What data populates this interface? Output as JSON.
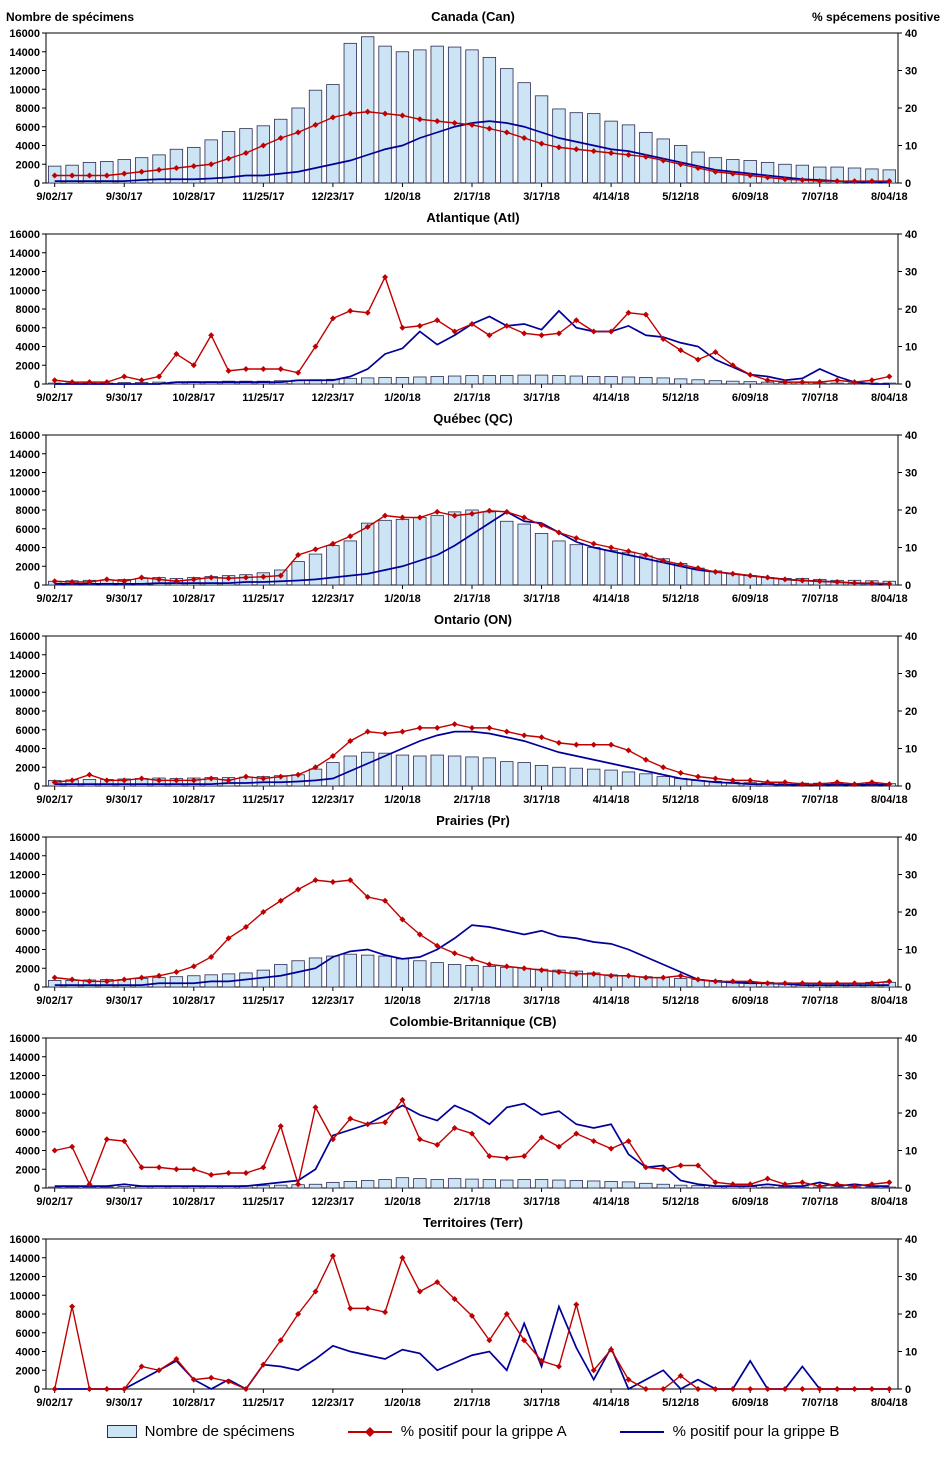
{
  "header": {
    "left_axis_title": "Nombre de spécimens",
    "right_axis_title": "% spécemens positive"
  },
  "legend": {
    "specimens": "Nombre de spécimens",
    "grippe_a": "% positif pour la grippe A",
    "grippe_b": "% positif pour la grippe B"
  },
  "colors": {
    "bar_fill": "#cce4f3",
    "bar_border": "#2b2b55",
    "grippe_a": "#c00000",
    "grippe_b": "#000099"
  },
  "axes": {
    "left_max": 16000,
    "left_step": 2000,
    "right_max": 40,
    "right_step": 10,
    "tick_every": 4,
    "n_points": 49,
    "x_tick_labels": [
      "9/02/17",
      "9/30/17",
      "10/28/17",
      "11/25/17",
      "12/23/17",
      "1/20/18",
      "2/17/18",
      "3/17/18",
      "4/14/18",
      "5/12/18",
      "6/09/18",
      "7/07/18",
      "8/04/18"
    ]
  },
  "chart_data": [
    {
      "type": "combo-bar-line",
      "id": "canada",
      "title": "Canada (Can)",
      "ylim_left": [
        0,
        16000
      ],
      "ylim_right": [
        0,
        40
      ],
      "specimens": [
        1800,
        1900,
        2200,
        2300,
        2500,
        2700,
        3000,
        3600,
        3800,
        4600,
        5500,
        5800,
        6100,
        6800,
        8000,
        9900,
        10500,
        14900,
        15600,
        14600,
        14000,
        14200,
        14600,
        14500,
        14200,
        13400,
        12200,
        10700,
        9300,
        7900,
        7500,
        7400,
        6600,
        6200,
        5400,
        4700,
        4000,
        3300,
        2700,
        2500,
        2400,
        2200,
        2000,
        1900,
        1700,
        1700,
        1600,
        1500,
        1400
      ],
      "pct_grippe_a": [
        2,
        2,
        2,
        2,
        2.5,
        3,
        3.5,
        4,
        4.5,
        5,
        6.5,
        8,
        10,
        12,
        13.5,
        15.5,
        17.5,
        18.5,
        19,
        18.5,
        18,
        17,
        16.5,
        16,
        15.5,
        14.5,
        13.5,
        12,
        10.5,
        9.5,
        9,
        8.5,
        8,
        7.5,
        7,
        6,
        5,
        4,
        3,
        2.5,
        2,
        1.5,
        1,
        0.8,
        0.5,
        0.5,
        0.5,
        0.5,
        0.5
      ],
      "pct_grippe_b": [
        0.5,
        0.5,
        0.5,
        0.5,
        0.5,
        0.8,
        1,
        1,
        1,
        1.2,
        1.5,
        2,
        2,
        2.5,
        3,
        4,
        5,
        6,
        7.5,
        9,
        10,
        12,
        13.5,
        15,
        16,
        16.5,
        16,
        15,
        13.5,
        12,
        11,
        10,
        9,
        8.5,
        7.5,
        6.5,
        5.5,
        4.5,
        3.5,
        3,
        2.5,
        2,
        1.5,
        1,
        0.8,
        0.5,
        0.3,
        0.3,
        0.3
      ]
    },
    {
      "type": "combo-bar-line",
      "id": "atlantique",
      "title": "Atlantique (Atl)",
      "ylim_left": [
        0,
        16000
      ],
      "ylim_right": [
        0,
        40
      ],
      "specimens": [
        100,
        100,
        100,
        100,
        150,
        150,
        200,
        200,
        250,
        250,
        300,
        300,
        300,
        350,
        400,
        450,
        500,
        600,
        650,
        700,
        700,
        750,
        800,
        850,
        900,
        900,
        900,
        950,
        950,
        900,
        850,
        800,
        800,
        750,
        700,
        650,
        550,
        450,
        350,
        300,
        250,
        200,
        150,
        150,
        100,
        100,
        100,
        100,
        100
      ],
      "pct_grippe_a": [
        1,
        0.5,
        0.5,
        0.5,
        2,
        1,
        2,
        8,
        5,
        13,
        3.5,
        4,
        4,
        4,
        3,
        10,
        17.5,
        19.5,
        19,
        28.5,
        15,
        15.5,
        17,
        14,
        16,
        13,
        15.5,
        13.5,
        13,
        13.5,
        17,
        14,
        14,
        19,
        18.5,
        12,
        9,
        6.5,
        8.5,
        5,
        2.5,
        1,
        0.5,
        0.5,
        0.5,
        1,
        0.5,
        1,
        2
      ],
      "pct_grippe_b": [
        0,
        0,
        0,
        0,
        0,
        0,
        0,
        0.5,
        0.5,
        0.5,
        0.5,
        0.5,
        0.5,
        0.5,
        1,
        1,
        1,
        2,
        4,
        8,
        9.5,
        14,
        10.5,
        13,
        16,
        18,
        15.5,
        16,
        14.5,
        19.5,
        15,
        14,
        14,
        15.5,
        13,
        12.5,
        11,
        10,
        6.5,
        4.5,
        2.5,
        2,
        1,
        1.5,
        4,
        2,
        0.5,
        0,
        0
      ]
    },
    {
      "type": "combo-bar-line",
      "id": "quebec",
      "title": "Québec (QC)",
      "ylim_left": [
        0,
        16000
      ],
      "ylim_right": [
        0,
        40
      ],
      "specimens": [
        400,
        450,
        500,
        550,
        600,
        700,
        800,
        700,
        800,
        900,
        1000,
        1100,
        1300,
        1600,
        2500,
        3300,
        4200,
        4700,
        6600,
        6900,
        7000,
        7200,
        7400,
        7800,
        8000,
        7800,
        6800,
        6500,
        5500,
        4700,
        4300,
        4000,
        3700,
        3500,
        3100,
        2800,
        2300,
        1800,
        1500,
        1200,
        1000,
        800,
        700,
        700,
        600,
        500,
        500,
        450,
        400
      ],
      "pct_grippe_a": [
        1,
        0.8,
        0.8,
        1.5,
        1,
        2,
        1.5,
        1,
        1.5,
        2,
        1.8,
        2,
        2.2,
        2.5,
        8,
        9.5,
        11,
        13,
        15.5,
        18.5,
        18,
        18,
        19.5,
        18.5,
        19,
        19.8,
        19.5,
        18,
        16,
        14,
        12.5,
        11,
        10,
        9,
        8,
        6.5,
        5.5,
        4.5,
        3.5,
        3,
        2.5,
        2,
        1.5,
        1.2,
        1,
        0.8,
        0.5,
        0.5,
        0.3
      ],
      "pct_grippe_b": [
        0.3,
        0.3,
        0.3,
        0.3,
        0.3,
        0.3,
        0.5,
        0.5,
        0.5,
        0.5,
        0.5,
        0.8,
        0.8,
        1,
        1.2,
        1.5,
        2,
        2.5,
        3,
        4,
        5,
        6.5,
        8,
        10.5,
        13.5,
        16.5,
        19.5,
        17,
        16.5,
        14,
        11.5,
        10,
        9,
        8,
        7,
        6,
        5,
        4,
        3.5,
        3,
        2.5,
        2,
        1.5,
        1.2,
        1,
        0.8,
        0.5,
        0.4,
        0.3
      ]
    },
    {
      "type": "combo-bar-line",
      "id": "ontario",
      "title": "Ontario (ON)",
      "ylim_left": [
        0,
        16000
      ],
      "ylim_right": [
        0,
        40
      ],
      "specimens": [
        600,
        650,
        700,
        700,
        750,
        800,
        850,
        800,
        850,
        900,
        900,
        950,
        1000,
        1100,
        1200,
        1800,
        2500,
        3200,
        3600,
        3500,
        3300,
        3200,
        3300,
        3200,
        3100,
        3000,
        2600,
        2500,
        2200,
        2000,
        1900,
        1800,
        1700,
        1500,
        1300,
        1000,
        800,
        600,
        500,
        400,
        350,
        300,
        300,
        300,
        300,
        250,
        250,
        250,
        250
      ],
      "pct_grippe_a": [
        1,
        1.5,
        3,
        1.5,
        1.5,
        2,
        1.5,
        1.5,
        1.5,
        2,
        1.5,
        2.5,
        2,
        2.5,
        3,
        5,
        8,
        12,
        14.5,
        14,
        14.5,
        15.5,
        15.5,
        16.5,
        15.5,
        15.5,
        14.5,
        13.5,
        13,
        11.5,
        11,
        11,
        11,
        9.5,
        7,
        5,
        3.5,
        2.5,
        2,
        1.5,
        1.5,
        1,
        1,
        0.5,
        0.5,
        1,
        0.5,
        1,
        0.5
      ],
      "pct_grippe_b": [
        0.5,
        0.5,
        0.5,
        0.5,
        0.5,
        0.5,
        0.5,
        0.5,
        0.5,
        0.5,
        0.8,
        0.8,
        1,
        1,
        1.2,
        1.5,
        2,
        4,
        6,
        8,
        10,
        12,
        13.5,
        14.5,
        14.5,
        14,
        13,
        12,
        10.5,
        9,
        8,
        7,
        6,
        5,
        4,
        3,
        2,
        1.5,
        1,
        0.8,
        0.5,
        0.5,
        0.3,
        0.3,
        0.3,
        0.3,
        0.3,
        0.3,
        0.3
      ]
    },
    {
      "type": "combo-bar-line",
      "id": "prairies",
      "title": "Prairies (Pr)",
      "ylim_left": [
        0,
        16000
      ],
      "ylim_right": [
        0,
        40
      ],
      "specimens": [
        700,
        700,
        750,
        800,
        800,
        900,
        1000,
        1100,
        1200,
        1300,
        1400,
        1500,
        1800,
        2400,
        2800,
        3100,
        3300,
        3500,
        3400,
        3300,
        3000,
        2800,
        2600,
        2400,
        2300,
        2200,
        2100,
        2000,
        1900,
        1800,
        1700,
        1500,
        1300,
        1200,
        1100,
        1000,
        900,
        800,
        700,
        600,
        500,
        500,
        450,
        450,
        400,
        400,
        400,
        500,
        500
      ],
      "pct_grippe_a": [
        2.5,
        2,
        1.5,
        1.5,
        2,
        2.5,
        3,
        4,
        5.5,
        8,
        13,
        16,
        20,
        23,
        26,
        28.5,
        28,
        28.5,
        24,
        23,
        18,
        14,
        11,
        9,
        7.5,
        6,
        5.5,
        5,
        4.5,
        4,
        3.5,
        3.5,
        3,
        3,
        2.5,
        2.5,
        3,
        2,
        1.5,
        1.5,
        1.5,
        1,
        1,
        1,
        1,
        1,
        1,
        1,
        1.5
      ],
      "pct_grippe_b": [
        0.5,
        0.5,
        0.5,
        0.5,
        0.5,
        0.5,
        1,
        1,
        1,
        1.5,
        1.5,
        2,
        2.5,
        3,
        4,
        5,
        8,
        9.5,
        10,
        8.5,
        7.5,
        8,
        10,
        13,
        16.5,
        16,
        15,
        14,
        15,
        13.5,
        13,
        12,
        11.5,
        10,
        8,
        6,
        4,
        2,
        1.5,
        1.2,
        1,
        1,
        0.8,
        0.5,
        0.5,
        0.5,
        0.5,
        0.5,
        0.5
      ]
    },
    {
      "type": "combo-bar-line",
      "id": "colombie-britannique",
      "title": "Colombie-Britannique (CB)",
      "ylim_left": [
        0,
        16000
      ],
      "ylim_right": [
        0,
        40
      ],
      "specimens": [
        100,
        100,
        100,
        100,
        150,
        150,
        150,
        150,
        200,
        200,
        200,
        250,
        250,
        300,
        350,
        400,
        600,
        700,
        800,
        900,
        1100,
        1000,
        900,
        1000,
        950,
        900,
        850,
        900,
        900,
        850,
        800,
        750,
        700,
        650,
        500,
        400,
        300,
        250,
        200,
        150,
        150,
        100,
        100,
        100,
        100,
        100,
        100,
        100,
        100
      ],
      "pct_grippe_a": [
        10,
        11,
        1,
        13,
        12.5,
        5.5,
        5.5,
        5,
        5,
        3.5,
        4,
        4,
        5.5,
        16.5,
        1,
        21.5,
        13,
        18.5,
        17,
        17.5,
        23.5,
        13,
        11.5,
        16,
        14.5,
        8.5,
        8,
        8.5,
        13.5,
        11,
        14.5,
        12.5,
        10.5,
        12.5,
        5.5,
        5,
        6,
        6,
        1.5,
        1,
        1,
        2.5,
        1,
        1.5,
        0.5,
        1,
        0.5,
        1,
        1.5
      ],
      "pct_grippe_b": [
        0.5,
        0.5,
        0.5,
        0.5,
        1,
        0.5,
        0.5,
        0.5,
        0.5,
        0.5,
        0.5,
        0.5,
        1,
        1.5,
        2,
        5,
        14,
        15.5,
        17,
        19.5,
        22,
        19.5,
        18,
        22,
        20,
        17,
        21.5,
        22.5,
        19.5,
        20.5,
        17,
        16,
        17,
        9,
        5.5,
        6,
        2,
        1,
        0.5,
        0.5,
        0.5,
        1,
        0.5,
        0.5,
        1.5,
        0.5,
        1,
        0.5,
        0.5
      ]
    },
    {
      "type": "combo-bar-line",
      "id": "territoires",
      "title": "Territoires (Terr)",
      "ylim_left": [
        0,
        16000
      ],
      "ylim_right": [
        0,
        40
      ],
      "specimens": [
        0,
        0,
        0,
        0,
        0,
        0,
        0,
        0,
        0,
        0,
        0,
        0,
        0,
        0,
        0,
        0,
        0,
        0,
        0,
        0,
        0,
        0,
        0,
        0,
        0,
        0,
        0,
        0,
        0,
        0,
        0,
        0,
        0,
        0,
        0,
        0,
        0,
        0,
        0,
        0,
        0,
        0,
        0,
        0,
        0,
        0,
        0,
        0,
        0
      ],
      "pct_grippe_a": [
        0,
        22,
        0,
        0,
        0,
        6,
        5,
        8,
        2.5,
        3,
        2,
        0,
        6.5,
        13,
        20,
        26,
        35.5,
        21.5,
        21.5,
        20.5,
        35,
        26,
        28.5,
        24,
        19.5,
        13,
        20,
        13,
        7.5,
        6,
        22.5,
        5,
        10.5,
        2.5,
        0,
        0,
        3.5,
        0,
        0,
        0,
        0,
        0,
        0,
        0,
        0,
        0,
        0,
        0,
        0
      ],
      "pct_grippe_b": [
        0,
        0,
        0,
        0,
        0,
        2.5,
        5,
        7.5,
        2.5,
        0,
        2.5,
        0,
        6.5,
        6,
        5,
        8,
        11.5,
        10,
        9,
        8,
        10.5,
        9.5,
        5,
        7,
        9,
        10,
        5,
        17.5,
        6,
        22,
        11,
        2.5,
        11,
        0,
        2.5,
        5,
        0,
        2.5,
        0,
        0,
        7.5,
        0,
        0,
        6,
        0,
        0,
        0,
        0,
        0
      ]
    }
  ]
}
